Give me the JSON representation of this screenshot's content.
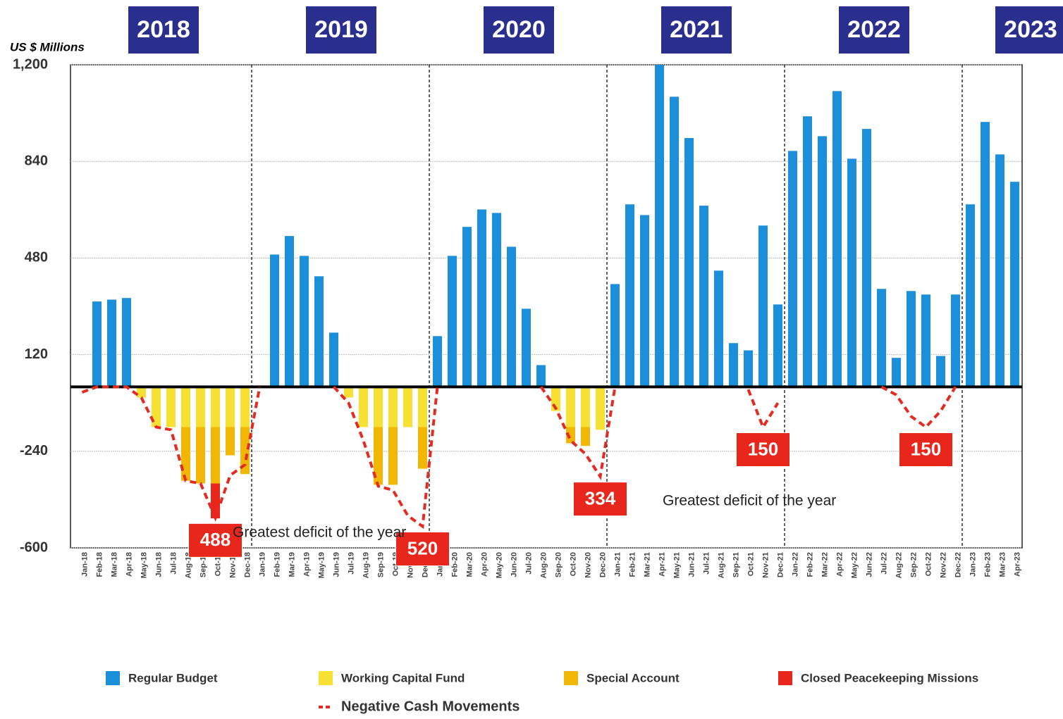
{
  "chart_data": {
    "type": "bar",
    "stacked": true,
    "ylabel": "US $ Millions",
    "ylim": [
      -600,
      1200
    ],
    "yticks": [
      {
        "value": 1200,
        "label": "1,200"
      },
      840,
      480,
      120,
      -240,
      -600
    ],
    "grid": true,
    "year_labels": [
      "2018",
      "2019",
      "2020",
      "2021",
      "2022",
      "2023"
    ],
    "annotations": [
      "Greatest deficit of the year",
      "Greatest deficit of the year"
    ],
    "categories": [
      "Jan-18",
      "Feb-18",
      "Mar-18",
      "Apr-18",
      "May-18",
      "Jun-18",
      "Jul-18",
      "Aug-18",
      "Sep-18",
      "Oct-18",
      "Nov-18",
      "Dec-18",
      "Jan-19",
      "Feb-19",
      "Mar-19",
      "Apr-19",
      "May-19",
      "Jun-19",
      "Jul-19",
      "Aug-19",
      "Sep-19",
      "Oct-19",
      "Nov-19",
      "Dec-19",
      "Jan-20",
      "Feb-20",
      "Mar-20",
      "Apr-20",
      "May-20",
      "Jun-20",
      "Jul-20",
      "Aug-20",
      "Sep-20",
      "Oct-20",
      "Nov-20",
      "Dec-20",
      "Jan-21",
      "Feb-21",
      "Mar-21",
      "Apr-21",
      "May-21",
      "Jun-21",
      "Jul-21",
      "Aug-21",
      "Sep-21",
      "Oct-21",
      "Nov-21",
      "Dec-21",
      "Jan-22",
      "Feb-22",
      "Mar-22",
      "Apr-22",
      "May-22",
      "Jun-22",
      "Jul-22",
      "Aug-22",
      "Sep-22",
      "Oct-22",
      "Nov-22",
      "Dec-22",
      "Jan-23",
      "Feb-23",
      "Mar-23",
      "Apr-23"
    ],
    "series": [
      {
        "name": "Regular Budget",
        "color": "#1b8fd9",
        "values": [
          0,
          318,
          325,
          331,
          0,
          0,
          0,
          0,
          0,
          0,
          0,
          0,
          0,
          493,
          562,
          488,
          412,
          202,
          0,
          0,
          0,
          0,
          0,
          0,
          189,
          488,
          596,
          661,
          648,
          522,
          291,
          81,
          0,
          0,
          0,
          0,
          383,
          680,
          640,
          1200,
          1081,
          927,
          675,
          433,
          163,
          136,
          601,
          307,
          879,
          1008,
          934,
          1102,
          850,
          961,
          365,
          108,
          357,
          344,
          115,
          344,
          680,
          987,
          866,
          764
        ]
      },
      {
        "name": "Working Capital Fund",
        "color": "#f7e034",
        "values": [
          0,
          0,
          0,
          0,
          -40,
          -150,
          -150,
          -150,
          -150,
          -150,
          -150,
          -150,
          0,
          0,
          0,
          0,
          0,
          0,
          -40,
          -150,
          -150,
          -150,
          -150,
          -150,
          0,
          0,
          0,
          0,
          0,
          0,
          0,
          0,
          -90,
          -150,
          -150,
          -160,
          0,
          0,
          0,
          0,
          0,
          0,
          0,
          0,
          0,
          0,
          0,
          0,
          0,
          0,
          0,
          0,
          0,
          0,
          0,
          0,
          0,
          0,
          0,
          0,
          0,
          0,
          0,
          0
        ]
      },
      {
        "name": "Special Account",
        "color": "#f2b705",
        "values": [
          0,
          0,
          0,
          0,
          0,
          0,
          0,
          -200,
          -210,
          -210,
          -105,
          -175,
          0,
          0,
          0,
          0,
          0,
          0,
          0,
          0,
          -215,
          -215,
          0,
          -155,
          0,
          0,
          0,
          0,
          0,
          0,
          0,
          0,
          0,
          -60,
          -70,
          0,
          0,
          0,
          0,
          0,
          0,
          0,
          0,
          0,
          0,
          0,
          0,
          0,
          0,
          0,
          0,
          0,
          0,
          0,
          0,
          0,
          0,
          0,
          0,
          0,
          0,
          0,
          0,
          0
        ]
      },
      {
        "name": "Closed Peacekeeping Missions",
        "color": "#e8261c",
        "values": [
          0,
          0,
          0,
          0,
          0,
          0,
          0,
          0,
          0,
          -130,
          0,
          0,
          0,
          0,
          0,
          0,
          0,
          0,
          0,
          0,
          0,
          0,
          0,
          0,
          0,
          0,
          0,
          0,
          0,
          0,
          0,
          0,
          0,
          0,
          0,
          0,
          0,
          0,
          0,
          0,
          0,
          0,
          0,
          0,
          0,
          0,
          0,
          0,
          0,
          0,
          0,
          0,
          0,
          0,
          0,
          0,
          0,
          0,
          0,
          0,
          0,
          0,
          0,
          0
        ]
      },
      {
        "name": "Negative Cash Movements",
        "type": "line",
        "color": "#e32b22",
        "values": [
          -20,
          0,
          0,
          0,
          -40,
          -150,
          -160,
          -350,
          -360,
          -488,
          -330,
          -290,
          0,
          null,
          null,
          null,
          null,
          0,
          -60,
          -200,
          -370,
          -385,
          -480,
          -520,
          0,
          null,
          null,
          null,
          null,
          null,
          null,
          0,
          -80,
          -200,
          -250,
          -334,
          0,
          null,
          null,
          null,
          null,
          null,
          null,
          null,
          null,
          -10,
          -150,
          -60,
          null,
          null,
          null,
          null,
          null,
          null,
          0,
          -30,
          -110,
          -150,
          -90,
          0,
          null,
          null,
          null,
          null
        ],
        "value_labels": [
          null,
          null,
          null,
          null,
          null,
          null,
          null,
          null,
          null,
          "488",
          null,
          null,
          null,
          null,
          null,
          null,
          null,
          null,
          null,
          null,
          null,
          null,
          null,
          "520",
          null,
          null,
          null,
          null,
          null,
          null,
          null,
          null,
          null,
          null,
          null,
          "334",
          null,
          null,
          null,
          null,
          null,
          null,
          null,
          null,
          null,
          null,
          "150",
          null,
          null,
          null,
          null,
          null,
          null,
          null,
          null,
          null,
          null,
          "150",
          null,
          null,
          null,
          null,
          null,
          null
        ]
      }
    ]
  }
}
